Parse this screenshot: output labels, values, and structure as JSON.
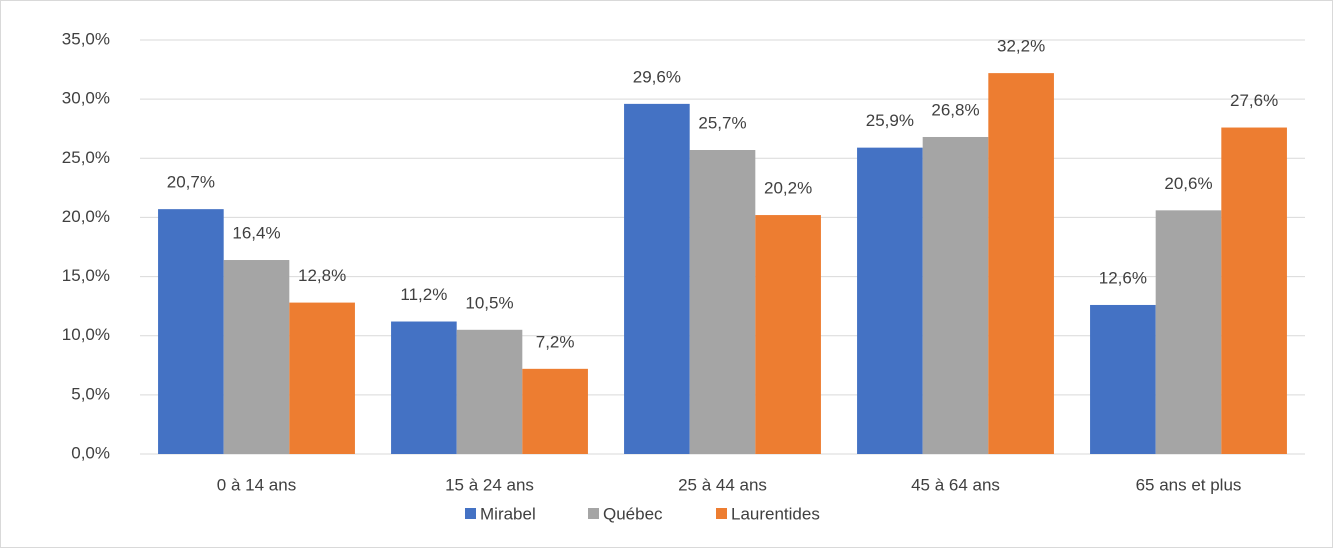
{
  "chart_data": {
    "type": "bar",
    "categories": [
      "0 à 14 ans",
      "15 à 24 ans",
      "25 à 44 ans",
      "45 à 64 ans",
      "65 ans et plus"
    ],
    "series": [
      {
        "name": "Mirabel",
        "color": "#4472c4",
        "values": [
          20.7,
          11.2,
          29.6,
          25.9,
          12.6
        ],
        "value_labels": [
          "20,7%",
          "11,2%",
          "29,6%",
          "25,9%",
          "12,6%"
        ]
      },
      {
        "name": "Québec",
        "color": "#a5a5a5",
        "values": [
          16.4,
          10.5,
          25.7,
          26.8,
          20.6
        ],
        "value_labels": [
          "16,4%",
          "10,5%",
          "25,7%",
          "26,8%",
          "20,6%"
        ]
      },
      {
        "name": "Laurentides",
        "color": "#ed7d31",
        "values": [
          12.8,
          7.2,
          20.2,
          32.2,
          27.6
        ],
        "value_labels": [
          "12,8%",
          "7,2%",
          "20,2%",
          "32,2%",
          "27,6%"
        ]
      }
    ],
    "ylim": [
      0,
      35
    ],
    "yticks": [
      {
        "value": 0,
        "label": "0,0%"
      },
      {
        "value": 5,
        "label": "5,0%"
      },
      {
        "value": 10,
        "label": "10,0%"
      },
      {
        "value": 15,
        "label": "15,0%"
      },
      {
        "value": 20,
        "label": "20,0%"
      },
      {
        "value": 25,
        "label": "25,0%"
      },
      {
        "value": 30,
        "label": "30,0%"
      },
      {
        "value": 35,
        "label": "35,0%"
      }
    ],
    "grid": true,
    "legend": "bottom"
  }
}
